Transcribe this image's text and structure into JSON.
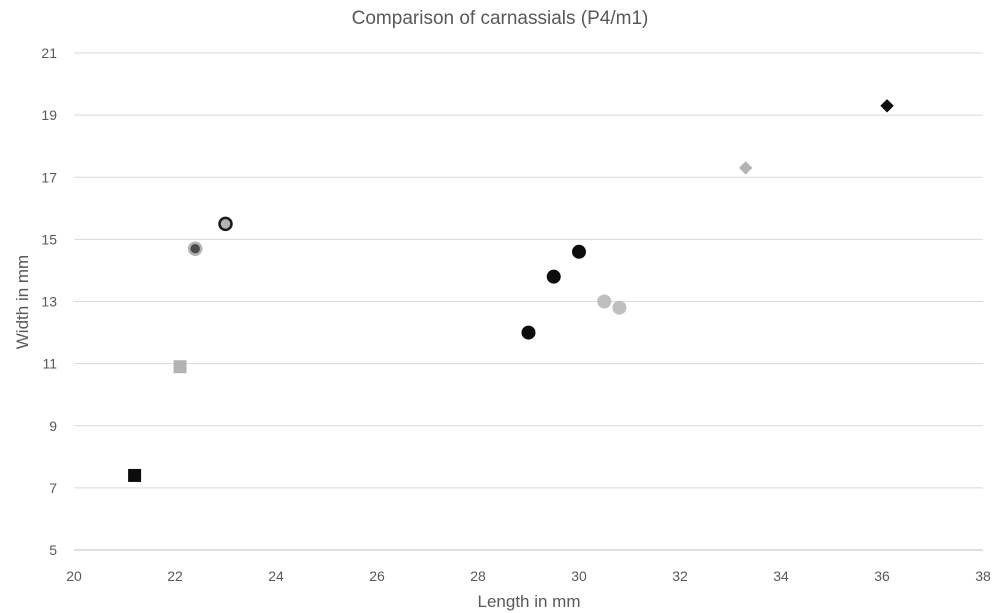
{
  "chart_data": {
    "type": "scatter",
    "title": "Comparison of carnassials (P4/m1)",
    "xlabel": "Length in mm",
    "ylabel": "Width in mm",
    "xlim": [
      20,
      38
    ],
    "ylim": [
      5,
      21
    ],
    "x_ticks": [
      "20",
      "22",
      "24",
      "26",
      "28",
      "30",
      "32",
      "34",
      "36",
      "38"
    ],
    "y_ticks": [
      "5",
      "7",
      "9",
      "11",
      "13",
      "15",
      "17",
      "19",
      "21"
    ],
    "grid": "horizontal",
    "legend": "none",
    "points": [
      {
        "x": 21.2,
        "y": 7.4,
        "marker": "square",
        "fill": "#0d0d0d",
        "stroke": "#0d0d0d"
      },
      {
        "x": 22.1,
        "y": 10.9,
        "marker": "square",
        "fill": "#b3b3b3",
        "stroke": "#b3b3b3"
      },
      {
        "x": 22.4,
        "y": 14.7,
        "marker": "circle-ring",
        "fill": "#4d4d4d",
        "stroke": "#b3b3b3"
      },
      {
        "x": 23.0,
        "y": 15.5,
        "marker": "circle-ring",
        "fill": "#b3b3b3",
        "stroke": "#1a1a1a"
      },
      {
        "x": 29.0,
        "y": 12.0,
        "marker": "circle",
        "fill": "#0d0d0d",
        "stroke": "#0d0d0d"
      },
      {
        "x": 29.5,
        "y": 13.8,
        "marker": "circle",
        "fill": "#0d0d0d",
        "stroke": "#0d0d0d"
      },
      {
        "x": 30.0,
        "y": 14.6,
        "marker": "circle",
        "fill": "#0d0d0d",
        "stroke": "#0d0d0d"
      },
      {
        "x": 30.5,
        "y": 13.0,
        "marker": "circle",
        "fill": "#bfbfbf",
        "stroke": "#bfbfbf"
      },
      {
        "x": 30.8,
        "y": 12.8,
        "marker": "circle",
        "fill": "#bfbfbf",
        "stroke": "#bfbfbf"
      },
      {
        "x": 33.3,
        "y": 17.3,
        "marker": "diamond",
        "fill": "#b3b3b3",
        "stroke": "#b3b3b3"
      },
      {
        "x": 36.1,
        "y": 19.3,
        "marker": "diamond",
        "fill": "#0d0d0d",
        "stroke": "#0d0d0d"
      }
    ]
  }
}
